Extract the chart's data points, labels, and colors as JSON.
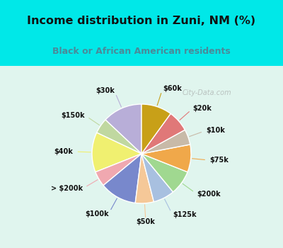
{
  "title": "Income distribution in Zuni, NM (%)",
  "subtitle": "Black or African American residents",
  "title_color": "#111111",
  "subtitle_color": "#4a8a9a",
  "background_top": "#00e8e8",
  "background_chart_top": "#e0f5ee",
  "background_chart_bottom": "#d0eedd",
  "watermark": "City-Data.com",
  "labels": [
    "$30k",
    "$150k",
    "$40k",
    "> $200k",
    "$100k",
    "$50k",
    "$125k",
    "$200k",
    "$75k",
    "$10k",
    "$20k",
    "$60k"
  ],
  "values": [
    13,
    5,
    13,
    5,
    12,
    6,
    7,
    8,
    9,
    5,
    7,
    10
  ],
  "colors": [
    "#b8aed8",
    "#c0d8a0",
    "#f0f070",
    "#f0a8b0",
    "#7888cc",
    "#f5c898",
    "#a8c0e0",
    "#a0d890",
    "#f0a84a",
    "#c8baa8",
    "#e07878",
    "#c8a018"
  ],
  "line_colors": [
    "#b8aed8",
    "#c0d8a0",
    "#f0f070",
    "#f0a8b0",
    "#7888cc",
    "#f5c898",
    "#a8c0e0",
    "#a0d890",
    "#f0a84a",
    "#c8baa8",
    "#e07878",
    "#c8a018"
  ],
  "startangle": 90,
  "title_fontsize": 11.5,
  "subtitle_fontsize": 9,
  "label_fontsize": 7.0
}
